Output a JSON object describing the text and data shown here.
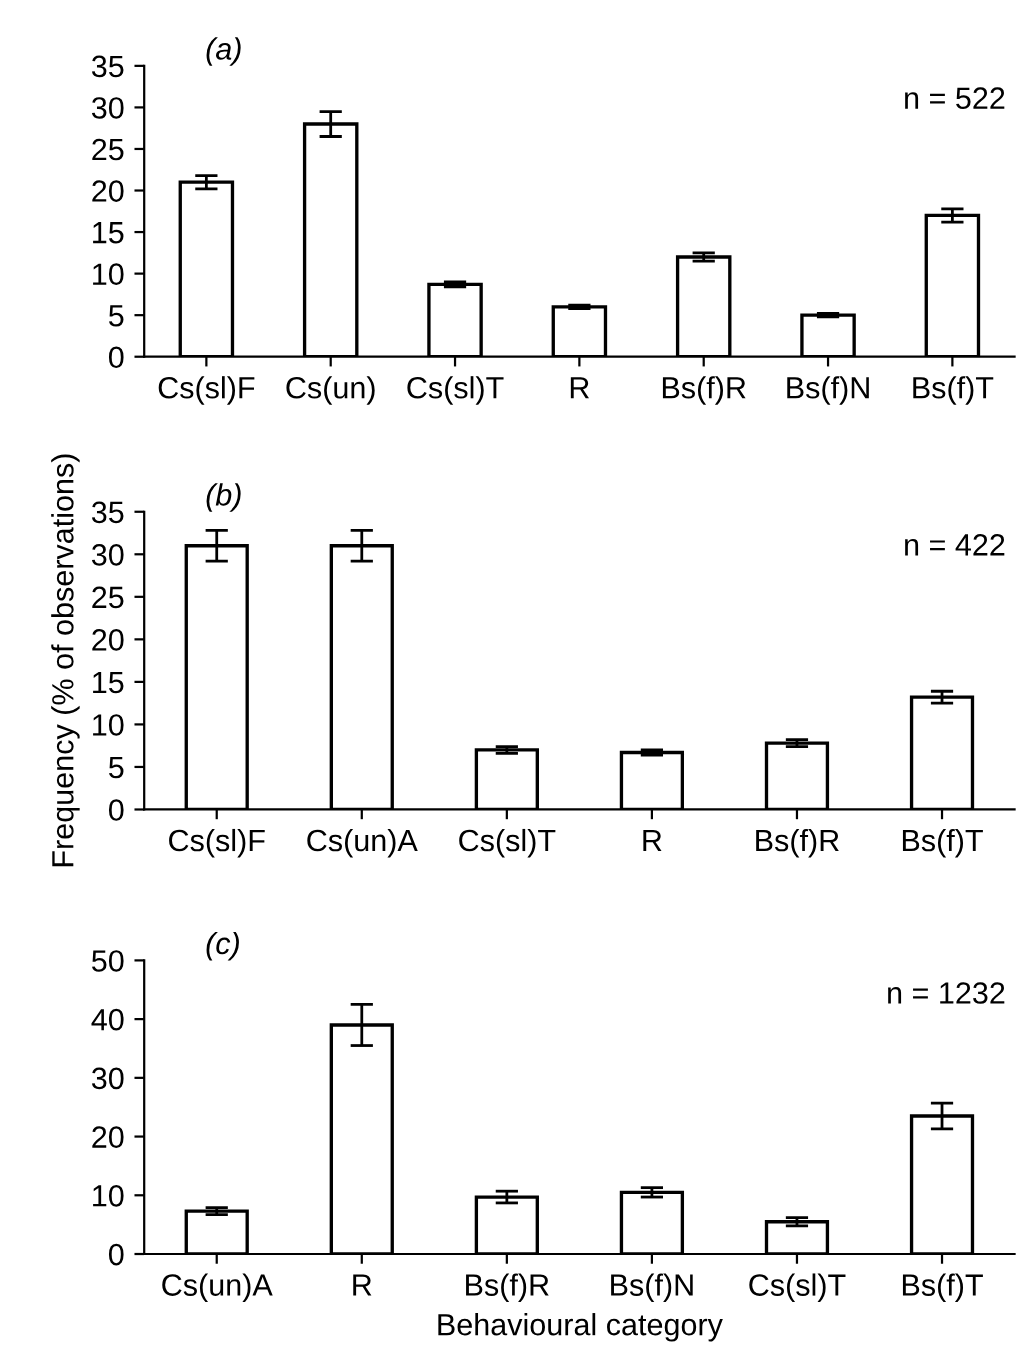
{
  "chart_data": [
    {
      "type": "bar",
      "title": "(a)",
      "categories": [
        "Cs(sl)F",
        "Cs(un)",
        "Cs(sl)T",
        "R",
        "Bs(f)R",
        "Bs(f)N",
        "Bs(f)T"
      ],
      "values": [
        21,
        28,
        8.7,
        6,
        12,
        5,
        17
      ],
      "errors": [
        0.8,
        1.5,
        0.3,
        0.2,
        0.5,
        0.2,
        0.8
      ],
      "color": "#ffffff",
      "ylim": [
        0,
        35
      ],
      "yticks": [
        0,
        5,
        10,
        15,
        20,
        25,
        30,
        35
      ],
      "annotations": [
        "n = 522"
      ],
      "grid": false
    },
    {
      "type": "bar",
      "title": "(b)",
      "ylabel": "Frequency (% of observations)",
      "categories": [
        "Cs(sl)F",
        "Cs(un)A",
        "Cs(sl)T",
        "R",
        "Bs(f)R",
        "Bs(f)T"
      ],
      "values": [
        31,
        31,
        7,
        6.7,
        7.8,
        13.2
      ],
      "errors": [
        1.8,
        1.8,
        0.4,
        0.3,
        0.4,
        0.7
      ],
      "color": "#ffffff",
      "ylim": [
        0,
        35
      ],
      "yticks": [
        0,
        5,
        10,
        15,
        20,
        25,
        30,
        35
      ],
      "annotations": [
        "n = 422"
      ],
      "grid": false
    },
    {
      "type": "bar",
      "title": "(c)",
      "xlabel": "Behavioural category",
      "categories": [
        "Cs(un)A",
        "R",
        "Bs(f)R",
        "Bs(f)N",
        "Cs(sl)T",
        "Bs(f)T"
      ],
      "values": [
        7.3,
        39,
        9.7,
        10.5,
        5.5,
        23.5
      ],
      "errors": [
        0.6,
        3.5,
        1,
        0.8,
        0.7,
        2.2
      ],
      "color": "#ffffff",
      "ylim": [
        0,
        50
      ],
      "yticks": [
        0,
        10,
        20,
        30,
        40,
        50
      ],
      "annotations": [
        "n = 1232"
      ],
      "grid": false
    }
  ]
}
